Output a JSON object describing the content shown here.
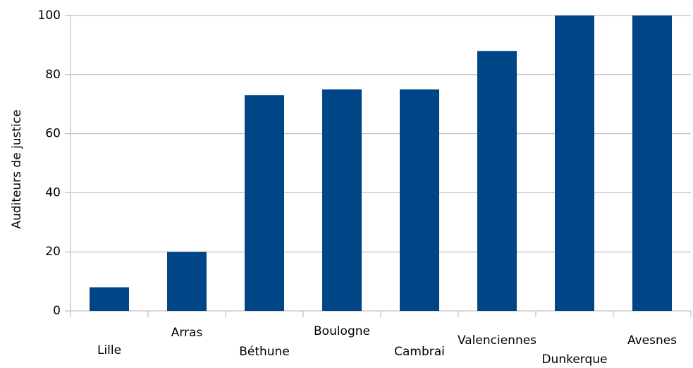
{
  "chart_data": {
    "type": "bar",
    "ylabel": "Auditeurs de justice",
    "categories": [
      "Lille",
      "Arras",
      "Béthune",
      "Boulogne",
      "Cambrai",
      "Valenciennes",
      "Dunkerque",
      "Avesnes"
    ],
    "values": [
      8,
      20,
      73,
      75,
      75,
      88,
      100,
      100
    ],
    "color": "#004586",
    "ylim": [
      0,
      100
    ],
    "yticks": [
      0,
      20,
      40,
      60,
      80,
      100
    ],
    "grid": true
  }
}
